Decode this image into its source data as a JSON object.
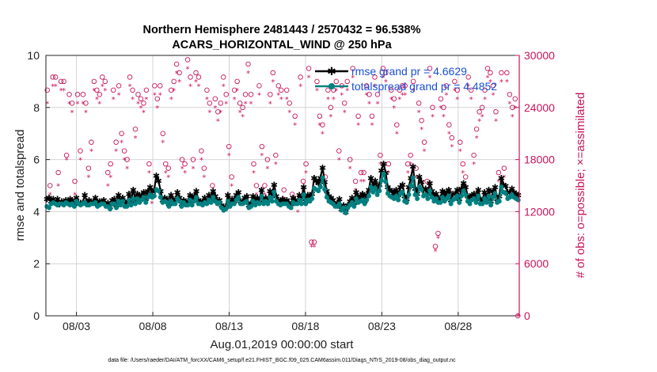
{
  "chart_data": {
    "type": "line",
    "title": "Northern Hemisphere 2481443 / 2570432 = 96.538%",
    "subtitle": "ACARS_HORIZONTAL_WIND @ 250 hPa",
    "xlabel": "Aug.01,2019 00:00:00 start",
    "ylabel": "rmse and totalspread",
    "ylabel_right": "# of obs: o=possible; ×=assimilated",
    "footnote": "data file: /Users/raeder/DAI/ATM_forcXX/CAM6_setup/f.e21.FHIST_BGC.f09_025.CAM6assim.011/Diags_NTrS_2019-08/obs_diag_output.nc",
    "x_ticks": [
      "08/03",
      "08/08",
      "08/13",
      "08/18",
      "08/23",
      "08/28"
    ],
    "x_tick_days": [
      3,
      8,
      13,
      18,
      23,
      28
    ],
    "xlim_days": [
      1,
      32
    ],
    "ylim": [
      0,
      10
    ],
    "y_ticks": [
      "0",
      "2",
      "4",
      "6",
      "8",
      "10"
    ],
    "ylim_right": [
      0,
      30000
    ],
    "y_ticks_right": [
      "0",
      "6000",
      "12000",
      "18000",
      "24000",
      "30000"
    ],
    "grid": true,
    "legend": {
      "position": "top-right",
      "entries": [
        "rmse grand pr = 4.6629",
        "totalspread grand pr = 4.4852"
      ]
    },
    "series": [
      {
        "name": "rmse",
        "axis": "left",
        "color": "#000000",
        "marker": "asterisk",
        "values": [
          4.5,
          4.55,
          4.4,
          4.5,
          4.35,
          4.5,
          4.3,
          4.4,
          4.35,
          4.45,
          4.35,
          4.5,
          4.45,
          4.3,
          4.55,
          4.35,
          4.35,
          4.35,
          4.65,
          4.35,
          4.45,
          4.35,
          4.4,
          4.55,
          4.3,
          4.4,
          4.4,
          4.45,
          4.3,
          4.35,
          4.2,
          4.45,
          4.5,
          4.25,
          4.65,
          4.4,
          4.55,
          4.4,
          4.3,
          4.7,
          4.4,
          4.85,
          4.45,
          4.7,
          4.55,
          4.65,
          4.75,
          4.5,
          4.8,
          4.95,
          4.8,
          4.85,
          5.4,
          5.2,
          4.8,
          4.45,
          4.55,
          4.5,
          4.3,
          4.65,
          4.4,
          4.5,
          4.75,
          4.55,
          4.3,
          4.45,
          4.35,
          4.4,
          4.65,
          4.4,
          4.6,
          4.8,
          4.45,
          4.4,
          4.35,
          4.55,
          4.4,
          4.65,
          4.5,
          4.8,
          4.6,
          4.4,
          4.45,
          4.25,
          4.15,
          4.2,
          4.65,
          4.3,
          4.5,
          4.4,
          4.65,
          4.75,
          4.4,
          4.4,
          4.55,
          4.6,
          4.25,
          4.35,
          4.6,
          4.4,
          4.55,
          4.45,
          4.85,
          4.45,
          4.55,
          4.45,
          4.8,
          4.65,
          5.05,
          4.6,
          4.45,
          4.35,
          4.5,
          4.4,
          4.45,
          4.35,
          4.3,
          4.55,
          4.45,
          4.4,
          4.65,
          4.5,
          4.95,
          4.4,
          4.65,
          4.6,
          4.7,
          5.3,
          5.2,
          5.1,
          5.3,
          5.7,
          5.15,
          4.8,
          4.6,
          4.55,
          4.45,
          4.3,
          4.35,
          4.5,
          4.1,
          4.25,
          4.0,
          4.25,
          4.4,
          4.55,
          4.35,
          4.75,
          4.5,
          4.6,
          4.7,
          4.4,
          4.65,
          4.85,
          5.3,
          5.0,
          5.2,
          4.9,
          5.05,
          5.6,
          5.85,
          5.5,
          4.95,
          4.85,
          4.8,
          4.7,
          4.85,
          4.65,
          4.95,
          5.05,
          4.6,
          4.5,
          4.95,
          5.3,
          5.75,
          4.9,
          4.7,
          5.35,
          5.15,
          4.85,
          4.9,
          4.7,
          5.1,
          4.8,
          4.6,
          4.7,
          4.5,
          4.55,
          4.8,
          4.6,
          4.75,
          4.85,
          4.45,
          4.7,
          4.7,
          4.85,
          4.5,
          4.9,
          5.1,
          4.95,
          4.6,
          4.5,
          4.65,
          4.7,
          4.55,
          4.85,
          4.5,
          4.45,
          4.75,
          4.55,
          4.85,
          4.4,
          4.8,
          4.95,
          4.5,
          4.6,
          5.3,
          5.05,
          5.0,
          4.75,
          4.75,
          4.9,
          4.75,
          4.7,
          4.65
        ]
      },
      {
        "name": "totalspread",
        "axis": "left",
        "color": "#008080",
        "marker": "circle",
        "values": [
          4.2,
          4.15,
          4.3,
          4.35,
          4.3,
          4.25,
          4.3,
          4.3,
          4.25,
          4.35,
          4.3,
          4.25,
          4.3,
          4.2,
          4.4,
          4.3,
          4.25,
          4.3,
          4.35,
          4.25,
          4.25,
          4.3,
          4.3,
          4.35,
          4.2,
          4.25,
          4.3,
          4.3,
          4.2,
          4.2,
          4.1,
          4.3,
          4.3,
          4.15,
          4.4,
          4.25,
          4.4,
          4.2,
          4.2,
          4.45,
          4.25,
          4.5,
          4.3,
          4.5,
          4.35,
          4.45,
          4.55,
          4.35,
          4.55,
          4.65,
          4.55,
          4.6,
          4.85,
          4.8,
          4.55,
          4.35,
          4.4,
          4.35,
          4.2,
          4.4,
          4.3,
          4.3,
          4.5,
          4.4,
          4.2,
          4.35,
          4.25,
          4.25,
          4.45,
          4.25,
          4.4,
          4.55,
          4.3,
          4.3,
          4.25,
          4.35,
          4.3,
          4.45,
          4.35,
          4.55,
          4.4,
          4.3,
          4.35,
          4.15,
          4.05,
          4.1,
          4.4,
          4.2,
          4.3,
          4.3,
          4.45,
          4.55,
          4.3,
          4.3,
          4.35,
          4.4,
          4.15,
          4.2,
          4.4,
          4.25,
          4.35,
          4.3,
          4.6,
          4.3,
          4.4,
          4.3,
          4.55,
          4.4,
          4.75,
          4.4,
          4.3,
          4.25,
          4.3,
          4.3,
          4.3,
          4.2,
          4.15,
          4.35,
          4.3,
          4.3,
          4.45,
          4.3,
          4.65,
          4.3,
          4.45,
          4.4,
          4.5,
          4.9,
          4.85,
          4.8,
          4.95,
          5.3,
          4.85,
          4.55,
          4.4,
          4.35,
          4.3,
          4.2,
          4.2,
          4.3,
          4.05,
          4.15,
          3.95,
          4.15,
          4.25,
          4.35,
          4.2,
          4.5,
          4.35,
          4.4,
          4.45,
          4.3,
          4.45,
          4.6,
          4.95,
          4.75,
          4.9,
          4.65,
          4.8,
          5.2,
          5.45,
          5.15,
          4.7,
          4.6,
          4.55,
          4.5,
          4.6,
          4.45,
          4.7,
          4.75,
          4.4,
          4.35,
          4.65,
          5.0,
          5.3,
          4.65,
          4.5,
          4.95,
          4.85,
          4.6,
          4.65,
          4.5,
          4.8,
          4.55,
          4.4,
          4.5,
          4.35,
          4.35,
          4.55,
          4.4,
          4.5,
          4.6,
          4.3,
          4.45,
          4.5,
          4.6,
          4.35,
          4.6,
          4.8,
          4.65,
          4.4,
          4.3,
          4.45,
          4.5,
          4.35,
          4.6,
          4.3,
          4.3,
          4.5,
          4.35,
          4.6,
          4.25,
          4.55,
          4.7,
          4.35,
          4.4,
          4.95,
          4.75,
          4.7,
          4.5,
          4.55,
          4.65,
          4.55,
          4.5,
          4.45
        ]
      },
      {
        "name": "obs possible",
        "axis": "right",
        "color": "#c8145a",
        "marker": "open-circle",
        "values": [
          26000,
          15000,
          27500,
          27500,
          16500,
          27000,
          27000,
          18500,
          25500,
          24500,
          15500,
          25500,
          19000,
          25500,
          24500,
          17000,
          20000,
          27000,
          26000,
          25500,
          27500,
          27000,
          16500,
          17500,
          26000,
          20000,
          26500,
          21000,
          19000,
          18000,
          27500,
          26000,
          21500,
          25500,
          25000,
          24500,
          26000,
          17500,
          14000,
          26500,
          25000,
          26500,
          21000,
          17500,
          17000,
          26000,
          27000,
          29000,
          28000,
          18000,
          17500,
          29500,
          27500,
          18000,
          28000,
          27500,
          19000,
          17000,
          26000,
          24500,
          15000,
          25000,
          23500,
          24500,
          27500,
          25500,
          19500,
          16000,
          26000,
          27000,
          24500,
          24000,
          25500,
          29000,
          25500,
          17500,
          15000,
          26500,
          19500,
          15000,
          18000,
          25500,
          28000,
          18500,
          26500,
          26000,
          14500,
          26000,
          24500,
          14000,
          23000,
          13000,
          27500,
          15500,
          17500,
          28500,
          8500,
          8500,
          27000,
          23000,
          22000,
          16000,
          26000,
          24000,
          26000,
          27000,
          19000,
          26500,
          24500,
          27000,
          18000,
          28500,
          15500,
          23000,
          16500,
          16500,
          26500,
          25500,
          23000,
          27500,
          25500,
          18500,
          28500,
          28000,
          17500,
          26000,
          25000,
          22000,
          26000,
          26500,
          26500,
          17500,
          18500,
          27000,
          17000,
          24500,
          22500,
          20000,
          15500,
          28500,
          24000,
          8000,
          9500,
          25000,
          24000,
          26500,
          22000,
          20500,
          27000,
          26000,
          20000,
          17500,
          16000,
          27500,
          26000,
          18500,
          21500,
          23500,
          24000,
          26000,
          28500,
          28000,
          26500,
          23500,
          16500,
          28000,
          17000,
          28000,
          25500,
          24000,
          25000,
          0
        ]
      },
      {
        "name": "obs assimilated",
        "axis": "right",
        "color": "#c8145a",
        "marker": "asterisk",
        "values": [
          24500,
          14000,
          26500,
          26500,
          15000,
          26000,
          26000,
          18000,
          24500,
          23500,
          14000,
          24500,
          18000,
          24500,
          23500,
          16000,
          19000,
          26000,
          25000,
          24500,
          26500,
          26000,
          15000,
          16000,
          25000,
          19000,
          25500,
          20000,
          18000,
          17000,
          26500,
          25000,
          20500,
          24500,
          24000,
          23500,
          25000,
          16500,
          13000,
          25500,
          24000,
          25500,
          20000,
          16500,
          16000,
          25000,
          26000,
          28000,
          27000,
          17000,
          16500,
          28500,
          26500,
          17000,
          27000,
          26500,
          18000,
          16000,
          25000,
          23500,
          14000,
          24000,
          22500,
          23500,
          26500,
          24500,
          18500,
          15000,
          25000,
          26000,
          23500,
          23000,
          24500,
          28000,
          24500,
          16500,
          14000,
          25500,
          18500,
          14000,
          17000,
          24500,
          27000,
          17500,
          25500,
          25000,
          13500,
          25000,
          23500,
          13000,
          22000,
          12000,
          26500,
          14500,
          16500,
          27500,
          8000,
          8000,
          26000,
          22000,
          21000,
          15000,
          25000,
          23000,
          25000,
          26000,
          18000,
          25500,
          23500,
          26000,
          17000,
          27500,
          14500,
          22000,
          15500,
          15500,
          25500,
          24500,
          22000,
          26500,
          24500,
          17500,
          27500,
          27000,
          16500,
          25000,
          24000,
          21000,
          25000,
          25500,
          25500,
          16500,
          17500,
          26000,
          16000,
          23500,
          21500,
          19000,
          14500,
          27500,
          23000,
          7500,
          9000,
          24000,
          23000,
          25500,
          21000,
          19500,
          26000,
          25000,
          19000,
          16500,
          15000,
          26500,
          25000,
          17500,
          20500,
          22500,
          23000,
          25000,
          27500,
          27000,
          25500,
          22500,
          15500,
          27000,
          16000,
          27000,
          24500,
          23000,
          24000,
          0
        ]
      }
    ]
  }
}
